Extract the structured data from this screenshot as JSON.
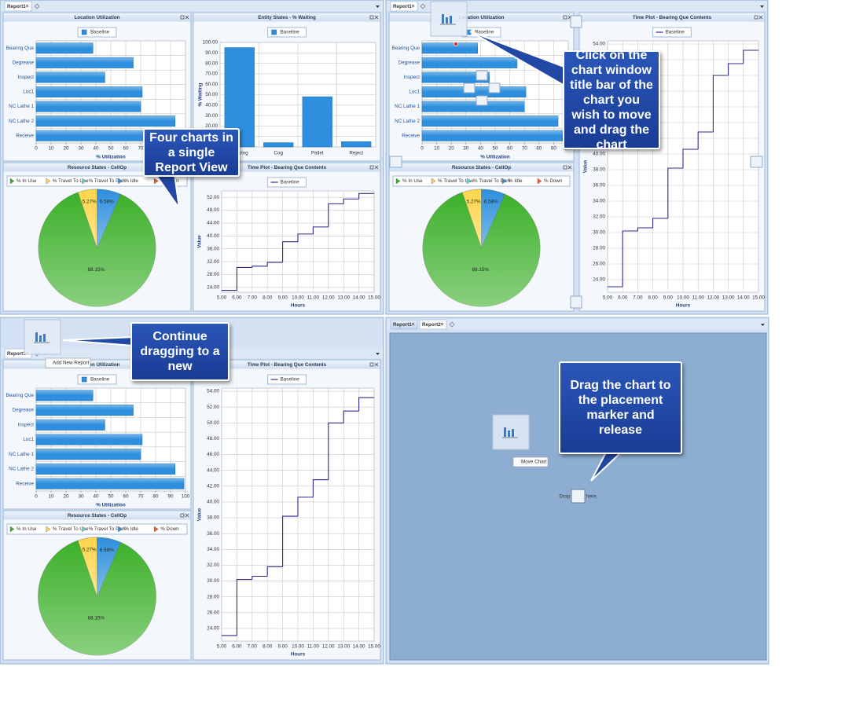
{
  "panels": [
    {
      "tabs": [
        "Report1"
      ],
      "callout": "Four charts in a single Report View",
      "charts": [
        {
          "type": "bar",
          "orientation": "horizontal",
          "title": "Location Utilization",
          "categories": [
            "Bearing Que",
            "Degrease",
            "Inspect",
            "Loc1",
            "NC Lathe 1",
            "NC Lathe 2",
            "Receive"
          ],
          "series": [
            {
              "name": "Baseline",
              "color": "#2d8fdd",
              "values": [
                38,
                65,
                46,
                71,
                70,
                93,
                99
              ]
            }
          ],
          "xlim": [
            0,
            100
          ],
          "xticks": [
            0,
            10,
            20,
            30,
            40,
            50,
            60,
            70,
            80,
            90,
            100
          ],
          "xlabel": "% Utilization",
          "grid": true
        },
        {
          "type": "bar",
          "orientation": "vertical",
          "title": "Entity States - % Waiting",
          "categories": [
            "Bearing",
            "Cog",
            "Pallet",
            "Reject"
          ],
          "series": [
            {
              "name": "Baseline",
              "color": "#2d8fdd",
              "values": [
                95,
                4,
                48,
                5
              ]
            }
          ],
          "ylim": [
            0,
            100
          ],
          "yticks": [
            {
              "value": 0,
              "label": "0.00"
            },
            {
              "value": 10,
              "label": "10.00"
            },
            {
              "value": 20,
              "label": "20.00"
            },
            {
              "value": 30,
              "label": "30.00"
            },
            {
              "value": 40,
              "label": "40.00"
            },
            {
              "value": 50,
              "label": "50.00"
            },
            {
              "value": 60,
              "label": "60.00"
            },
            {
              "value": 70,
              "label": "70.00"
            },
            {
              "value": 80,
              "label": "80.00"
            },
            {
              "value": 90,
              "label": "90.00"
            },
            {
              "value": 100,
              "label": "100.00"
            }
          ],
          "ylabel": "% Waiting",
          "grid": true
        },
        {
          "type": "pie",
          "title": "Resource States - CellOp",
          "categories": [
            "% In Use",
            "% Travel To Use",
            "% Travel To Park",
            "% Idle",
            "% Down"
          ],
          "values": [
            88.15,
            5.27,
            0,
            6.58,
            0
          ],
          "value_labels": [
            "88.15%",
            "5.27%",
            null,
            "6.58%",
            null
          ],
          "colors": [
            "#3cb02a",
            "#ffd54a",
            "#5fd3d8",
            "#2d8fdd",
            "#e8602a"
          ]
        },
        {
          "type": "line",
          "title": "Time Plot - Bearing Que Contents",
          "x": [
            5,
            6,
            7,
            8,
            9,
            10,
            11,
            12,
            13,
            14
          ],
          "series": [
            {
              "name": "Baseline",
              "color": "#2b2b8c",
              "values": [
                23.1,
                30.2,
                30.6,
                31.8,
                38.2,
                40.6,
                42.8,
                50.0,
                51.5,
                53.2
              ]
            }
          ],
          "xlim": [
            5,
            15
          ],
          "xticks": [
            {
              "value": 5,
              "label": "5.00"
            },
            {
              "value": 6,
              "label": "6.00"
            },
            {
              "value": 7,
              "label": "7.00"
            },
            {
              "value": 8,
              "label": "8.00"
            },
            {
              "value": 9,
              "label": "9.00"
            },
            {
              "value": 10,
              "label": "10.00"
            },
            {
              "value": 11,
              "label": "11.00"
            },
            {
              "value": 12,
              "label": "12.00"
            },
            {
              "value": 13,
              "label": "13.00"
            },
            {
              "value": 14,
              "label": "14.00"
            },
            {
              "value": 15,
              "label": "15.00"
            }
          ],
          "ylim": [
            22.5,
            54
          ],
          "yticks": [
            {
              "value": 24,
              "label": "24.00"
            },
            {
              "value": 28,
              "label": "28.00"
            },
            {
              "value": 32,
              "label": "32.00"
            },
            {
              "value": 36,
              "label": "36.00"
            },
            {
              "value": 40,
              "label": "40.00"
            },
            {
              "value": 44,
              "label": "44.00"
            },
            {
              "value": 48,
              "label": "48.00"
            },
            {
              "value": 52,
              "label": "52.00"
            }
          ],
          "xlabel": "Hours",
          "ylabel": "Value",
          "grid": true
        }
      ]
    },
    {
      "tabs": [
        "Report1"
      ],
      "callout": "Click on the chart window title bar of the chart you wish to move and drag the chart",
      "charts": [
        {
          "type": "bar",
          "orientation": "horizontal",
          "title": "Location Utilization",
          "categories": [
            "Bearing Que",
            "Degrease",
            "Inspect",
            "Loc1",
            "NC Lathe 1",
            "NC Lathe 2",
            "Receive"
          ],
          "series": [
            {
              "name": "Baseline",
              "color": "#2d8fdd",
              "values": [
                38,
                65,
                46,
                71,
                70,
                93,
                99
              ]
            }
          ],
          "xlim": [
            0,
            100
          ],
          "xticks": [
            0,
            10,
            20,
            30,
            40,
            50,
            60,
            70,
            80,
            90,
            100
          ],
          "xlabel": "% Utilization",
          "grid": true
        },
        {
          "type": "pie",
          "title": "Resource States - CellOp",
          "categories": [
            "% In Use",
            "% Travel To Use",
            "% Travel To Park",
            "% Idle",
            "% Down"
          ],
          "values": [
            88.15,
            5.27,
            0,
            6.58,
            0
          ],
          "value_labels": [
            "88.15%",
            "5.27%",
            null,
            "6.58%",
            null
          ],
          "colors": [
            "#3cb02a",
            "#ffd54a",
            "#5fd3d8",
            "#2d8fdd",
            "#e8602a"
          ]
        },
        {
          "type": "line",
          "title": "Time Plot - Bearing Que Contents",
          "x": [
            5,
            6,
            7,
            8,
            9,
            10,
            11,
            12,
            13,
            14
          ],
          "series": [
            {
              "name": "Baseline",
              "color": "#2b2b8c",
              "values": [
                23.1,
                30.2,
                30.6,
                31.8,
                38.2,
                40.6,
                42.8,
                50.0,
                51.5,
                53.2
              ]
            }
          ],
          "xlim": [
            5,
            15
          ],
          "xticks": [
            {
              "value": 5,
              "label": "5.00"
            },
            {
              "value": 6,
              "label": "6.00"
            },
            {
              "value": 7,
              "label": "7.00"
            },
            {
              "value": 8,
              "label": "8.00"
            },
            {
              "value": 9,
              "label": "9.00"
            },
            {
              "value": 10,
              "label": "10.00"
            },
            {
              "value": 11,
              "label": "11.00"
            },
            {
              "value": 12,
              "label": "12.00"
            },
            {
              "value": 13,
              "label": "13.00"
            },
            {
              "value": 14,
              "label": "14.00"
            },
            {
              "value": 15,
              "label": "15.00"
            }
          ],
          "ylim": [
            22.4,
            54.4
          ],
          "yticks": [
            {
              "value": 24,
              "label": "24.00"
            },
            {
              "value": 26,
              "label": "26.00"
            },
            {
              "value": 28,
              "label": "28.00"
            },
            {
              "value": 30,
              "label": "30.00"
            },
            {
              "value": 32,
              "label": "32.00"
            },
            {
              "value": 34,
              "label": "34.00"
            },
            {
              "value": 36,
              "label": "36.00"
            },
            {
              "value": 38,
              "label": "38.00"
            },
            {
              "value": 40,
              "label": "40.00"
            },
            {
              "value": 42,
              "label": "42.00"
            },
            {
              "value": 44,
              "label": "44.00"
            },
            {
              "value": 46,
              "label": "46.00"
            },
            {
              "value": 48,
              "label": "48.00"
            },
            {
              "value": 50,
              "label": "50.00"
            },
            {
              "value": 52,
              "label": "52.00"
            },
            {
              "value": 54,
              "label": "54.00"
            }
          ],
          "xlabel": "Hours",
          "ylabel": "Value",
          "grid": true
        }
      ]
    },
    {
      "tabs": [
        "Report1"
      ],
      "tooltip": "Add New Report",
      "callout": "Continue dragging to a new",
      "charts": [
        {
          "type": "bar",
          "orientation": "horizontal",
          "title": "Location Utilization",
          "categories": [
            "Bearing Que",
            "Degrease",
            "Inspect",
            "Loc1",
            "NC Lathe 1",
            "NC Lathe 2",
            "Receive"
          ],
          "series": [
            {
              "name": "Baseline",
              "color": "#2d8fdd",
              "values": [
                38,
                65,
                46,
                71,
                70,
                93,
                99
              ]
            }
          ],
          "xlim": [
            0,
            100
          ],
          "xticks": [
            0,
            10,
            20,
            30,
            40,
            50,
            60,
            70,
            80,
            90,
            100
          ],
          "xlabel": "% Utilization",
          "grid": true
        },
        {
          "type": "pie",
          "title": "Resource States - CellOp",
          "categories": [
            "% In Use",
            "% Travel To Use",
            "% Travel To Park",
            "% Idle",
            "% Down"
          ],
          "values": [
            88.15,
            5.27,
            0,
            6.58,
            0
          ],
          "value_labels": [
            "88.15%",
            "5.27%",
            null,
            "6.58%",
            null
          ],
          "colors": [
            "#3cb02a",
            "#ffd54a",
            "#5fd3d8",
            "#2d8fdd",
            "#e8602a"
          ]
        },
        {
          "type": "line",
          "title": "Time Plot - Bearing Que Contents",
          "x": [
            5,
            6,
            7,
            8,
            9,
            10,
            11,
            12,
            13,
            14
          ],
          "series": [
            {
              "name": "Baseline",
              "color": "#2b2b8c",
              "values": [
                23.1,
                30.2,
                30.6,
                31.8,
                38.2,
                40.6,
                42.8,
                50.0,
                51.5,
                53.2
              ]
            }
          ],
          "xlim": [
            5,
            15
          ],
          "xticks": [
            {
              "value": 5,
              "label": "5.00"
            },
            {
              "value": 6,
              "label": "6.00"
            },
            {
              "value": 7,
              "label": "7.00"
            },
            {
              "value": 8,
              "label": "8.00"
            },
            {
              "value": 9,
              "label": "9.00"
            },
            {
              "value": 10,
              "label": "10.00"
            },
            {
              "value": 11,
              "label": "11.00"
            },
            {
              "value": 12,
              "label": "12.00"
            },
            {
              "value": 13,
              "label": "13.00"
            },
            {
              "value": 14,
              "label": "14.00"
            },
            {
              "value": 15,
              "label": "15.00"
            }
          ],
          "ylim": [
            22.4,
            54.4
          ],
          "yticks": [
            {
              "value": 24,
              "label": "24.00"
            },
            {
              "value": 26,
              "label": "26.00"
            },
            {
              "value": 28,
              "label": "28.00"
            },
            {
              "value": 30,
              "label": "30.00"
            },
            {
              "value": 32,
              "label": "32.00"
            },
            {
              "value": 34,
              "label": "34.00"
            },
            {
              "value": 36,
              "label": "36.00"
            },
            {
              "value": 38,
              "label": "38.00"
            },
            {
              "value": 40,
              "label": "40.00"
            },
            {
              "value": 42,
              "label": "42.00"
            },
            {
              "value": 44,
              "label": "44.00"
            },
            {
              "value": 46,
              "label": "46.00"
            },
            {
              "value": 48,
              "label": "48.00"
            },
            {
              "value": 50,
              "label": "50.00"
            },
            {
              "value": 52,
              "label": "52.00"
            },
            {
              "value": 54,
              "label": "54.00"
            }
          ],
          "xlabel": "Hours",
          "ylabel": "Value",
          "grid": true
        }
      ]
    },
    {
      "tabs": [
        "Report1",
        "Report2"
      ],
      "tooltip": "Move Chart",
      "drop_text": [
        "Drop",
        "here."
      ],
      "callout": "Drag the chart to the placement marker and release",
      "charts": []
    }
  ]
}
